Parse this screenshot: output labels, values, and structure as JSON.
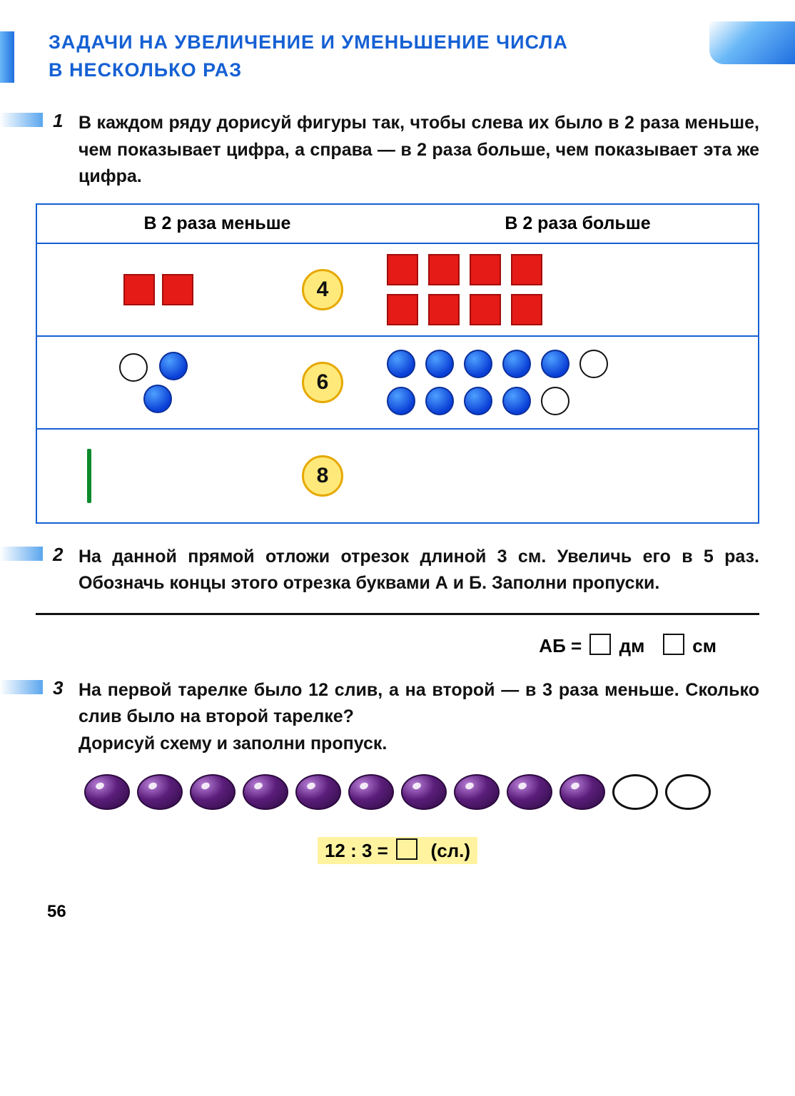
{
  "title_line1": "ЗАДАЧИ НА УВЕЛИЧЕНИЕ И УМЕНЬШЕНИЕ ЧИСЛА",
  "title_line2": "В НЕСКОЛЬКО РАЗ",
  "colors": {
    "accent_blue": "#1560d4",
    "red_fill": "#e41b17",
    "blue_fill": "#0a3fd6",
    "green_fill": "#0a8a2a",
    "yellow_badge": "#ffe97a",
    "badge_border": "#e6a800",
    "plum_dark": "#2d0a40",
    "highlight_bg": "#fff3a0"
  },
  "task1": {
    "num": "1",
    "text": "В каждом ряду дорисуй фигуры так, чтобы слева их было в 2 раза меньше, чем показывает цифра, а справа — в 2 раза больше, чем показывает эта же цифра.",
    "header_left": "В 2 раза меньше",
    "header_right": "В 2 раза больше",
    "rows": [
      {
        "badge": "4",
        "left": {
          "shape": "red-square",
          "count_filled": 2,
          "count_empty": 0
        },
        "right_rows": [
          {
            "items": [
              "red-square",
              "red-square",
              "red-square",
              "red-square"
            ]
          },
          {
            "items": [
              "red-square",
              "red-square",
              "red-square",
              "red-square"
            ]
          }
        ]
      },
      {
        "badge": "6",
        "left": {
          "layout": "triangle",
          "items": [
            "empty-circle",
            "blue-circle",
            "blue-circle"
          ]
        },
        "right_rows": [
          {
            "items": [
              "blue-circle",
              "blue-circle",
              "blue-circle",
              "blue-circle",
              "blue-circle",
              "empty-circle"
            ]
          },
          {
            "items": [
              "blue-circle",
              "blue-circle",
              "blue-circle",
              "blue-circle",
              "empty-circle"
            ]
          }
        ]
      },
      {
        "badge": "8",
        "left": {
          "shape": "green-stick",
          "count_filled": 1,
          "count_empty": 0
        },
        "right_rows": []
      }
    ]
  },
  "task2": {
    "num": "2",
    "text": "На данной прямой отложи отрезок длиной 3 см. Увеличь его в 5 раз. Обозначь концы этого отрезка буквами А и Б. Заполни пропуски.",
    "answer_prefix": "АБ =",
    "unit_dm": "дм",
    "unit_cm": "см"
  },
  "task3": {
    "num": "3",
    "text": "На первой тарелке было 12 слив, а на второй — в 3 раза меньше. Сколько слив было на второй тарелке?",
    "text2": "Дорисуй схему и заполни пропуск.",
    "plums_filled": 10,
    "plums_empty": 2,
    "equation_left": "12 : 3 =",
    "equation_right": "(сл.)"
  },
  "page_number": "56"
}
